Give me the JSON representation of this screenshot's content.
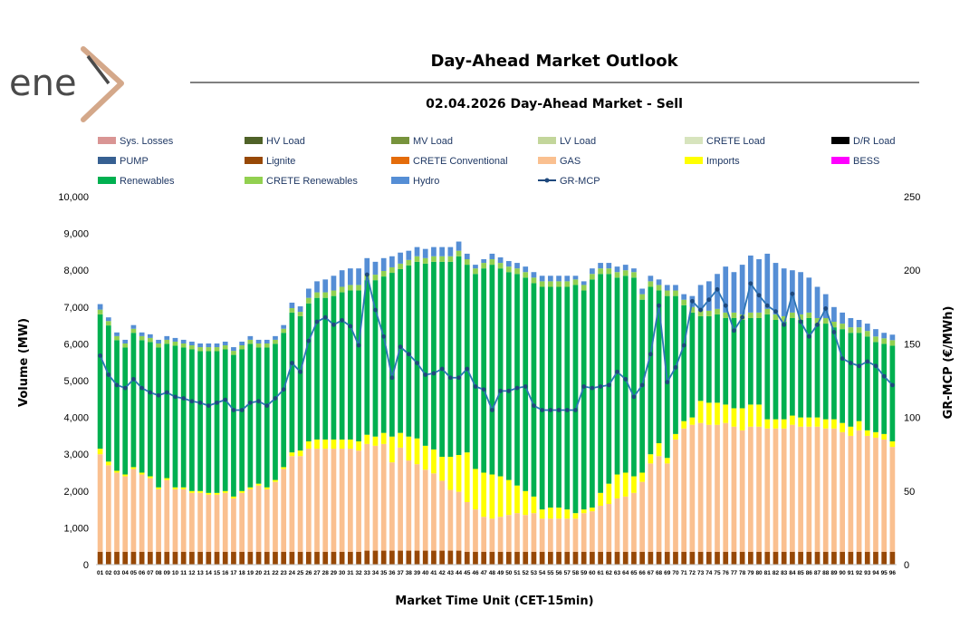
{
  "logo": {
    "text": "ene"
  },
  "chart_data": {
    "type": "bar",
    "title": "Day-Ahead Market Outlook",
    "subtitle": "02.04.2026  Day-Ahead Market - Sell",
    "xlabel": "Market Time Unit (CET-15min)",
    "ylabel": "Volume (MW)",
    "y2label": "GR-MCP (€/MWh)",
    "ylim": [
      0,
      10000
    ],
    "y2lim": [
      0,
      250
    ],
    "yticks": [
      "0",
      "1,000",
      "2,000",
      "3,000",
      "4,000",
      "5,000",
      "6,000",
      "7,000",
      "8,000",
      "9,000",
      "10,000"
    ],
    "y2ticks": [
      "0",
      "50",
      "100",
      "150",
      "200",
      "250"
    ],
    "categories": [
      "01",
      "02",
      "03",
      "04",
      "05",
      "06",
      "07",
      "08",
      "09",
      "10",
      "11",
      "12",
      "13",
      "14",
      "15",
      "16",
      "17",
      "18",
      "19",
      "20",
      "21",
      "22",
      "23",
      "24",
      "25",
      "26",
      "27",
      "28",
      "29",
      "30",
      "31",
      "32",
      "33",
      "34",
      "35",
      "36",
      "37",
      "38",
      "39",
      "40",
      "41",
      "42",
      "43",
      "44",
      "45",
      "46",
      "47",
      "48",
      "49",
      "50",
      "51",
      "52",
      "53",
      "54",
      "55",
      "56",
      "57",
      "58",
      "59",
      "60",
      "61",
      "62",
      "63",
      "64",
      "65",
      "66",
      "67",
      "68",
      "69",
      "70",
      "71",
      "72",
      "73",
      "74",
      "75",
      "76",
      "77",
      "78",
      "79",
      "80",
      "81",
      "82",
      "83",
      "84",
      "85",
      "86",
      "87",
      "88",
      "89",
      "90",
      "91",
      "92",
      "93",
      "94",
      "95",
      "96"
    ],
    "legend": [
      {
        "name": "Sys. Losses",
        "color": "#d99594"
      },
      {
        "name": "HV Load",
        "color": "#4f6228"
      },
      {
        "name": "MV Load",
        "color": "#77933c"
      },
      {
        "name": "LV Load",
        "color": "#c3d69b"
      },
      {
        "name": "CRETE Load",
        "color": "#d7e4bd"
      },
      {
        "name": "D/R Load",
        "color": "#000000"
      },
      {
        "name": "PUMP",
        "color": "#376092"
      },
      {
        "name": "Lignite",
        "color": "#974806"
      },
      {
        "name": "CRETE Conventional",
        "color": "#e46c0a"
      },
      {
        "name": "GAS",
        "color": "#fac090"
      },
      {
        "name": "Imports",
        "color": "#ffff00"
      },
      {
        "name": "BESS",
        "color": "#ff00ff"
      },
      {
        "name": "Renewables",
        "color": "#00b050"
      },
      {
        "name": "CRETE Renewables",
        "color": "#92d050"
      },
      {
        "name": "Hydro",
        "color": "#558ed5"
      },
      {
        "name": "GR-MCP",
        "color": "#1f497d"
      }
    ],
    "series": [
      {
        "name": "Lignite",
        "color": "#974806",
        "values": [
          350,
          350,
          350,
          350,
          350,
          350,
          350,
          350,
          350,
          350,
          350,
          350,
          350,
          350,
          350,
          350,
          350,
          350,
          350,
          350,
          350,
          350,
          350,
          350,
          350,
          350,
          350,
          350,
          350,
          350,
          350,
          350,
          380,
          380,
          380,
          380,
          380,
          380,
          380,
          380,
          380,
          380,
          380,
          380,
          350,
          350,
          350,
          350,
          350,
          350,
          350,
          350,
          350,
          350,
          350,
          350,
          350,
          350,
          350,
          350,
          350,
          350,
          350,
          350,
          350,
          350,
          350,
          350,
          350,
          350,
          350,
          350,
          350,
          350,
          350,
          350,
          350,
          350,
          350,
          350,
          350,
          350,
          350,
          350,
          350,
          350,
          350,
          350,
          350,
          350,
          350,
          350,
          350,
          350,
          350,
          350
        ]
      },
      {
        "name": "GAS",
        "color": "#fac090",
        "values": [
          2650,
          2350,
          2150,
          2050,
          2250,
          2100,
          2000,
          1700,
          1950,
          1700,
          1700,
          1600,
          1600,
          1550,
          1550,
          1600,
          1450,
          1600,
          1700,
          1800,
          1700,
          1900,
          2250,
          2600,
          2600,
          2800,
          2800,
          2800,
          2800,
          2800,
          2800,
          2750,
          2900,
          2850,
          2900,
          2400,
          2800,
          2450,
          2350,
          2200,
          2100,
          1900,
          1650,
          1600,
          1350,
          1150,
          950,
          900,
          950,
          1000,
          1050,
          1000,
          1050,
          900,
          900,
          900,
          900,
          900,
          1050,
          1100,
          1250,
          1300,
          1450,
          1500,
          1600,
          1900,
          2400,
          2600,
          2400,
          3050,
          3350,
          3450,
          3500,
          3450,
          3450,
          3500,
          3400,
          3300,
          3400,
          3400,
          3350,
          3350,
          3350,
          3450,
          3400,
          3400,
          3400,
          3350,
          3350,
          3250,
          3150,
          3300,
          3150,
          3100,
          3050,
          2850
        ]
      },
      {
        "name": "Imports",
        "color": "#ffff00",
        "values": [
          150,
          100,
          50,
          50,
          50,
          50,
          50,
          50,
          50,
          50,
          50,
          50,
          50,
          50,
          50,
          50,
          50,
          50,
          50,
          50,
          50,
          50,
          50,
          100,
          150,
          200,
          250,
          250,
          250,
          250,
          250,
          250,
          250,
          250,
          300,
          700,
          400,
          650,
          700,
          650,
          650,
          650,
          900,
          1000,
          1350,
          1100,
          1200,
          1200,
          1100,
          950,
          750,
          650,
          450,
          250,
          300,
          300,
          250,
          150,
          100,
          100,
          350,
          550,
          650,
          650,
          450,
          250,
          250,
          350,
          150,
          150,
          200,
          200,
          600,
          600,
          600,
          500,
          500,
          600,
          600,
          600,
          250,
          250,
          250,
          250,
          250,
          250,
          250,
          250,
          250,
          250,
          250,
          250,
          150,
          150,
          150,
          150
        ]
      },
      {
        "name": "Renewables",
        "color": "#00b050",
        "values": [
          3650,
          3700,
          3550,
          3450,
          3650,
          3600,
          3650,
          3800,
          3650,
          3850,
          3800,
          3850,
          3800,
          3850,
          3850,
          3850,
          3850,
          3850,
          3900,
          3700,
          3800,
          3700,
          3650,
          3800,
          3650,
          3750,
          3850,
          3850,
          3900,
          4000,
          4050,
          4100,
          4200,
          4250,
          4250,
          4450,
          4450,
          4650,
          4800,
          4950,
          5100,
          5300,
          5300,
          5400,
          5100,
          5300,
          5550,
          5700,
          5650,
          5650,
          5750,
          5800,
          5800,
          6050,
          6000,
          6000,
          6050,
          6200,
          5950,
          6200,
          5950,
          5700,
          5350,
          5350,
          5400,
          4700,
          4550,
          4150,
          4400,
          3750,
          3150,
          2850,
          2300,
          2350,
          2400,
          2350,
          2450,
          2400,
          2350,
          2350,
          2850,
          2700,
          2650,
          2650,
          2650,
          2700,
          2550,
          2600,
          2500,
          2550,
          2550,
          2400,
          2550,
          2450,
          2450,
          2600
        ]
      },
      {
        "name": "CRETE Renewables",
        "color": "#92d050",
        "values": [
          130,
          120,
          110,
          110,
          110,
          110,
          110,
          110,
          110,
          110,
          110,
          110,
          110,
          110,
          110,
          110,
          110,
          110,
          110,
          110,
          110,
          110,
          110,
          120,
          120,
          150,
          150,
          150,
          150,
          150,
          150,
          150,
          150,
          150,
          150,
          150,
          150,
          150,
          150,
          150,
          150,
          150,
          150,
          150,
          150,
          150,
          150,
          150,
          150,
          150,
          150,
          150,
          150,
          150,
          150,
          150,
          150,
          150,
          150,
          150,
          150,
          150,
          150,
          150,
          150,
          150,
          150,
          150,
          150,
          150,
          150,
          150,
          150,
          150,
          150,
          150,
          150,
          150,
          150,
          150,
          150,
          150,
          150,
          150,
          150,
          150,
          150,
          150,
          150,
          150,
          150,
          150,
          150,
          150,
          150,
          150
        ]
      },
      {
        "name": "Hydro",
        "color": "#558ed5",
        "values": [
          150,
          100,
          100,
          100,
          100,
          100,
          100,
          100,
          100,
          100,
          100,
          100,
          100,
          100,
          100,
          100,
          100,
          100,
          100,
          100,
          100,
          100,
          100,
          150,
          150,
          250,
          300,
          350,
          400,
          450,
          450,
          450,
          450,
          350,
          350,
          300,
          300,
          250,
          250,
          250,
          250,
          250,
          250,
          250,
          150,
          100,
          100,
          150,
          150,
          150,
          150,
          150,
          150,
          150,
          150,
          150,
          150,
          100,
          100,
          150,
          150,
          150,
          150,
          150,
          100,
          150,
          150,
          150,
          150,
          150,
          150,
          300,
          700,
          800,
          950,
          1250,
          1100,
          1350,
          1550,
          1450,
          1500,
          1400,
          1300,
          1150,
          1150,
          950,
          850,
          650,
          400,
          300,
          250,
          200,
          200,
          200,
          150,
          150
        ]
      },
      {
        "name": "GR-MCP",
        "color": "#1f497d",
        "axis": "right",
        "values": [
          142,
          129,
          122,
          120,
          126,
          120,
          117,
          115,
          117,
          114,
          113,
          111,
          110,
          108,
          110,
          112,
          105,
          105,
          110,
          111,
          108,
          113,
          119,
          137,
          131,
          152,
          165,
          168,
          163,
          166,
          162,
          149,
          197,
          173,
          155,
          127,
          148,
          143,
          137,
          129,
          130,
          133,
          127,
          127,
          133,
          121,
          119,
          105,
          118,
          118,
          120,
          121,
          108,
          105,
          105,
          105,
          105,
          105,
          121,
          120,
          121,
          122,
          131,
          126,
          114,
          122,
          143,
          176,
          124,
          134,
          149,
          179,
          173,
          180,
          187,
          176,
          159,
          168,
          191,
          183,
          176,
          172,
          163,
          184,
          165,
          155,
          163,
          174,
          158,
          140,
          137,
          135,
          138,
          135,
          128,
          122
        ]
      }
    ]
  }
}
